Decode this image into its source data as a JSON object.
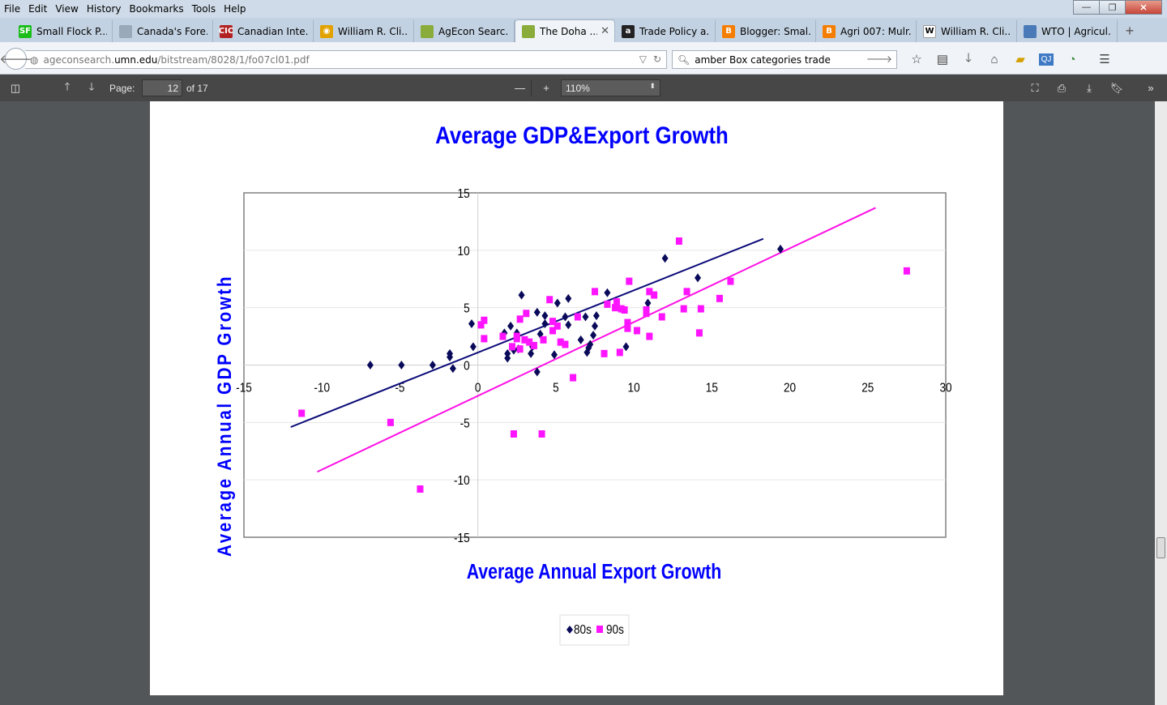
{
  "menu": [
    "File",
    "Edit",
    "View",
    "History",
    "Bookmarks",
    "Tools",
    "Help"
  ],
  "window_controls": {
    "minimize": "—",
    "restore": "❐",
    "close": "✕"
  },
  "tabs": [
    {
      "label": "Small Flock P...",
      "icon_text": "SF",
      "icon_color": "#1bbd1b"
    },
    {
      "label": "Canada's Fore...",
      "icon_text": "",
      "icon_color": "#9aa9ba"
    },
    {
      "label": "Canadian Inte...",
      "icon_text": "CIC",
      "icon_color": "#b22222"
    },
    {
      "label": "William R. Cli...",
      "icon_text": "◉",
      "icon_color": "#e2a200"
    },
    {
      "label": "AgEcon Searc...",
      "icon_text": "",
      "icon_color": "#8aac3a"
    },
    {
      "label": "The Doha ...",
      "icon_text": "",
      "icon_color": "#8aac3a",
      "active": true
    },
    {
      "label": "Trade Policy a...",
      "icon_text": "a",
      "icon_color": "#222222"
    },
    {
      "label": "Blogger: Smal...",
      "icon_text": "B",
      "icon_color": "#f57d00"
    },
    {
      "label": "Agri 007: Mulr...",
      "icon_text": "B",
      "icon_color": "#f57d00"
    },
    {
      "label": "William R. Cli...",
      "icon_text": "W",
      "icon_color": "#ffffff"
    },
    {
      "label": "WTO | Agricul...",
      "icon_text": "",
      "icon_color": "#4a7ab7"
    }
  ],
  "newtab_label": "+",
  "tab_close": "✕",
  "url": {
    "prefix": "ageconsearch.",
    "host": "umn.edu",
    "path": "/bitstream/8028/1/fo07cl01.pdf"
  },
  "search": {
    "value": "amber Box categories trade"
  },
  "pdf": {
    "page_label": "Page:",
    "page": "12",
    "of_label": "of 17",
    "zoom": "110%"
  },
  "colors": {
    "series_80s": "#0a0a5a",
    "series_90s": "#ff14ff",
    "trend_80s": "#0a0a78",
    "trend_90s": "#ff10e6",
    "title": "#0000ff"
  },
  "chart_data": {
    "type": "scatter",
    "title": "Average GDP&Export Growth",
    "xlabel": "Average Annual Export Growth",
    "ylabel": "Average Annual GDP Growth",
    "xlim": [
      -15,
      30
    ],
    "ylim": [
      -15,
      15
    ],
    "x_ticks": [
      -15,
      -10,
      -5,
      0,
      5,
      10,
      15,
      20,
      25,
      30
    ],
    "y_ticks": [
      -15,
      -10,
      -5,
      0,
      5,
      10,
      15
    ],
    "legend_position": "bottom",
    "series": [
      {
        "name": "80s",
        "marker": "diamond",
        "points": [
          [
            -6.9,
            0
          ],
          [
            -4.9,
            0
          ],
          [
            -2.9,
            0
          ],
          [
            -1.8,
            0.7
          ],
          [
            -1.8,
            1.0
          ],
          [
            -1.6,
            -0.3
          ],
          [
            -0.4,
            3.6
          ],
          [
            -0.3,
            1.6
          ],
          [
            1.7,
            2.8
          ],
          [
            1.9,
            0.6
          ],
          [
            1.9,
            1.0
          ],
          [
            2.1,
            3.4
          ],
          [
            2.3,
            1.3
          ],
          [
            2.5,
            2.8
          ],
          [
            2.6,
            1.4
          ],
          [
            2.8,
            6.1
          ],
          [
            3.4,
            1.0
          ],
          [
            3.5,
            1.6
          ],
          [
            3.8,
            -0.6
          ],
          [
            3.8,
            4.6
          ],
          [
            4.0,
            2.7
          ],
          [
            4.3,
            3.6
          ],
          [
            4.3,
            4.3
          ],
          [
            4.9,
            0.9
          ],
          [
            5.1,
            5.4
          ],
          [
            5.6,
            4.2
          ],
          [
            5.8,
            3.5
          ],
          [
            5.8,
            5.8
          ],
          [
            6.6,
            2.2
          ],
          [
            6.9,
            4.2
          ],
          [
            7.0,
            1.1
          ],
          [
            7.1,
            1.5
          ],
          [
            7.2,
            1.8
          ],
          [
            7.4,
            2.6
          ],
          [
            7.5,
            3.4
          ],
          [
            7.6,
            4.3
          ],
          [
            8.3,
            6.3
          ],
          [
            9.5,
            1.6
          ],
          [
            10.9,
            5.4
          ],
          [
            12.0,
            9.3
          ],
          [
            14.1,
            7.6
          ],
          [
            19.4,
            10.1
          ]
        ],
        "trendline": [
          [
            -12.0,
            -5.4
          ],
          [
            18.3,
            11.0
          ]
        ]
      },
      {
        "name": "90s",
        "marker": "square",
        "points": [
          [
            -11.3,
            -4.2
          ],
          [
            -5.6,
            -5.0
          ],
          [
            -3.7,
            -10.8
          ],
          [
            0.2,
            3.5
          ],
          [
            0.4,
            2.3
          ],
          [
            0.4,
            3.9
          ],
          [
            1.6,
            2.5
          ],
          [
            2.2,
            1.6
          ],
          [
            2.3,
            -6.0
          ],
          [
            2.5,
            2.3
          ],
          [
            2.5,
            2.5
          ],
          [
            2.7,
            1.4
          ],
          [
            2.7,
            4.0
          ],
          [
            3.0,
            2.2
          ],
          [
            3.1,
            4.5
          ],
          [
            3.3,
            2.0
          ],
          [
            3.6,
            1.7
          ],
          [
            4.1,
            -6.0
          ],
          [
            4.2,
            2.2
          ],
          [
            4.6,
            5.7
          ],
          [
            4.8,
            3.0
          ],
          [
            4.8,
            3.8
          ],
          [
            5.1,
            3.4
          ],
          [
            5.3,
            2.0
          ],
          [
            5.6,
            1.8
          ],
          [
            6.1,
            -1.1
          ],
          [
            6.4,
            4.2
          ],
          [
            7.5,
            6.4
          ],
          [
            8.1,
            1.0
          ],
          [
            8.3,
            5.3
          ],
          [
            8.8,
            5.0
          ],
          [
            8.9,
            5.5
          ],
          [
            9.1,
            1.1
          ],
          [
            9.2,
            4.9
          ],
          [
            9.4,
            4.8
          ],
          [
            9.6,
            3.2
          ],
          [
            9.6,
            3.7
          ],
          [
            9.7,
            7.3
          ],
          [
            10.2,
            3.0
          ],
          [
            10.8,
            4.5
          ],
          [
            10.8,
            4.8
          ],
          [
            11.0,
            2.5
          ],
          [
            11.0,
            6.4
          ],
          [
            11.3,
            6.1
          ],
          [
            11.8,
            4.2
          ],
          [
            12.9,
            10.8
          ],
          [
            13.2,
            4.9
          ],
          [
            13.4,
            6.4
          ],
          [
            14.2,
            2.8
          ],
          [
            14.3,
            4.9
          ],
          [
            15.5,
            5.8
          ],
          [
            16.2,
            7.3
          ],
          [
            27.5,
            8.2
          ]
        ],
        "trendline": [
          [
            -10.3,
            -9.3
          ],
          [
            25.5,
            13.7
          ]
        ]
      }
    ]
  }
}
